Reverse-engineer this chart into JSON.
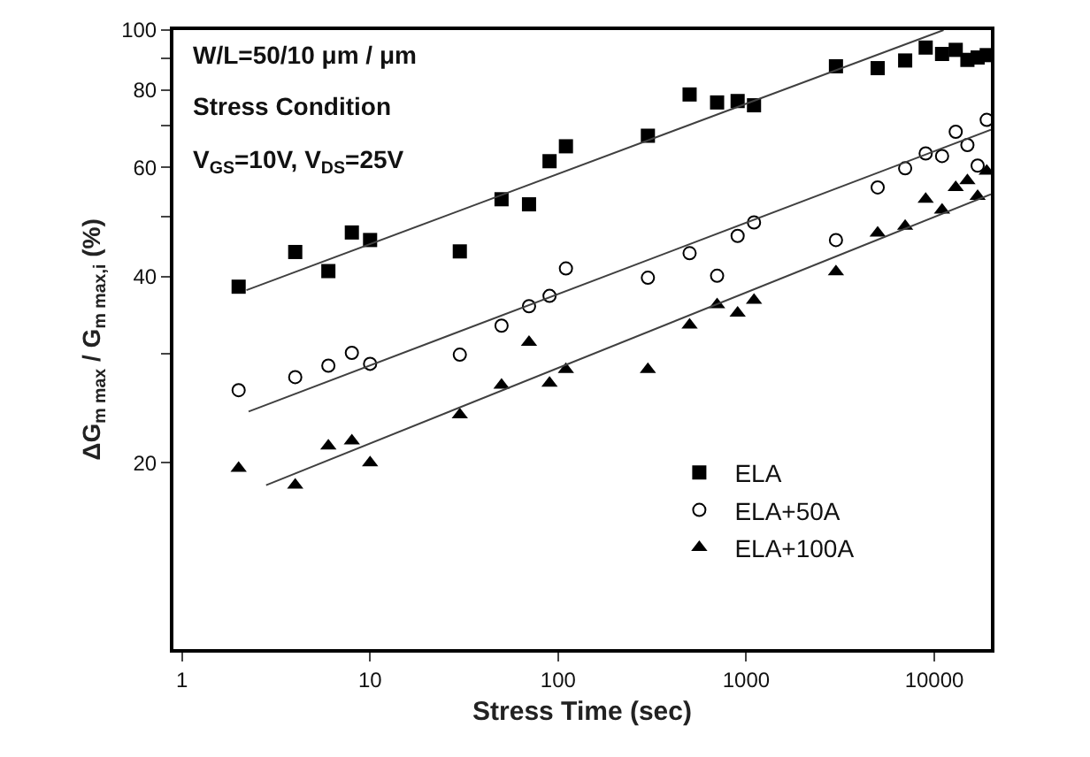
{
  "chart_data": {
    "type": "scatter",
    "xlabel": "Stress Time (sec)",
    "ylabel": "ΔG$_{m max}$ / G$_{m max,i}$ (%)",
    "annotations": [
      "W/L=50/10 μm / μm",
      "Stress Condition",
      "V$_{GS}$=10V, V$_{DS}$=25V"
    ],
    "log": "xy",
    "grid": false,
    "legend": "bottom right",
    "xlim": [
      0.9,
      20000
    ],
    "xticks": [
      1,
      10,
      100,
      1000,
      10000
    ],
    "ylim": [
      10,
      100
    ],
    "yticks": [
      20,
      {
        "value": 30,
        "label": null
      },
      40,
      {
        "value": 50,
        "label": null
      },
      60,
      {
        "value": 70,
        "label": null
      },
      80,
      {
        "value": 90,
        "label": null
      },
      100
    ],
    "series": [
      {
        "name": "ELA",
        "color": "#000000",
        "marker": "square",
        "x": [
          2,
          4,
          6,
          8,
          10,
          30,
          50,
          70,
          90,
          110,
          300,
          500,
          700,
          900,
          1100,
          3000,
          5000,
          7000,
          9000,
          11000,
          13000,
          15000,
          17000,
          19000
        ],
        "values": [
          38.5,
          43.8,
          40.8,
          47.1,
          45.8,
          43.9,
          53.3,
          52.3,
          61.4,
          64.9,
          67.5,
          78.7,
          76.4,
          76.8,
          75.6,
          87.4,
          86.8,
          89.3,
          93.7,
          91.5,
          92.9,
          89.5,
          90.3,
          91.1
        ]
      },
      {
        "name": "ELA+50A",
        "color": "#000000",
        "marker": "circle",
        "x": [
          2,
          4,
          6,
          8,
          10,
          30,
          50,
          70,
          90,
          110,
          300,
          500,
          700,
          900,
          1100,
          3000,
          5000,
          7000,
          9000,
          11000,
          13000,
          15000,
          17000,
          19000
        ],
        "values": [
          26.2,
          27.5,
          28.7,
          30.1,
          28.9,
          29.9,
          33.3,
          35.8,
          37.2,
          41.2,
          39.8,
          43.6,
          40.1,
          46.5,
          48.9,
          45.8,
          55.7,
          59.8,
          63.2,
          62.6,
          68.5,
          65.2,
          60.4,
          71.6
        ]
      },
      {
        "name": "ELA+100A",
        "color": "#000000",
        "marker": "triangle",
        "x": [
          2,
          4,
          6,
          8,
          10,
          30,
          50,
          70,
          90,
          110,
          300,
          500,
          700,
          900,
          1100,
          3000,
          5000,
          7000,
          9000,
          11000,
          13000,
          15000,
          17000,
          19000
        ],
        "values": [
          19.6,
          18.4,
          21.3,
          21.7,
          20.0,
          23.9,
          26.7,
          31.3,
          26.9,
          28.3,
          28.3,
          33.4,
          36.0,
          34.9,
          36.6,
          40.7,
          47.0,
          48.2,
          53.3,
          51.2,
          55.7,
          57.1,
          53.9,
          59.2
        ]
      },
      {
        "type": "line",
        "color": "#404040",
        "marker": "none",
        "line_style": "solid",
        "x": [
          2.2,
          11200
        ],
        "values": [
          38.0,
          100
        ]
      },
      {
        "type": "line",
        "color": "#404040",
        "marker": "none",
        "line_style": "solid",
        "x": [
          2.26,
          20000
        ],
        "values": [
          24.2,
          69.0
        ]
      },
      {
        "type": "line",
        "color": "#404040",
        "marker": "none",
        "line_style": "solid",
        "x": [
          2.8,
          20000
        ],
        "values": [
          18.4,
          54.3
        ]
      }
    ]
  }
}
